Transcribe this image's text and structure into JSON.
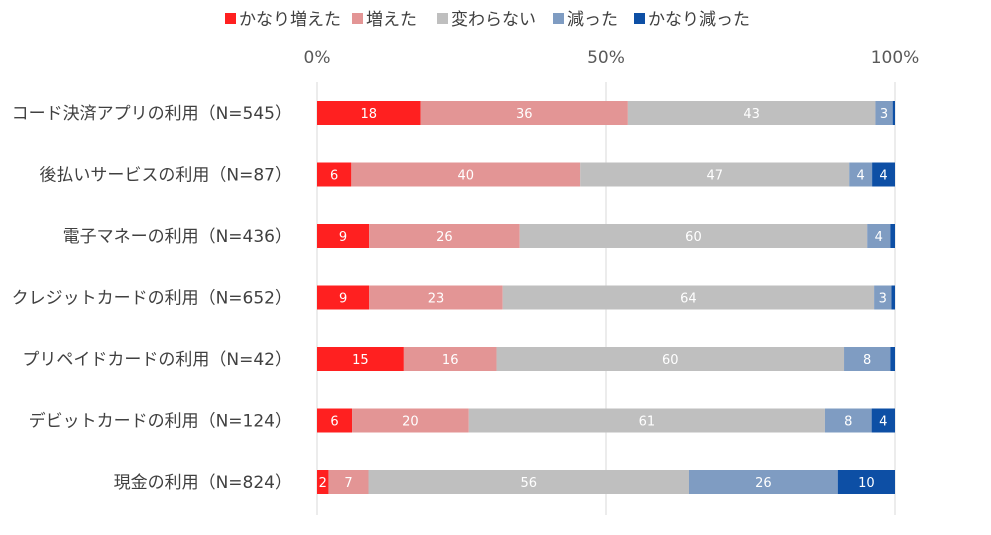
{
  "chart_data": {
    "type": "bar",
    "orientation": "horizontal",
    "stacked": "percent",
    "title": "",
    "xlabel": "",
    "ylabel": "",
    "xlim": [
      0,
      100
    ],
    "x_ticks": [
      0,
      50,
      100
    ],
    "x_tick_labels": [
      "0%",
      "50%",
      "100%"
    ],
    "legend_position": "top",
    "grid": true,
    "categories": [
      "コード決済アプリの利用（N=545）",
      "後払いサービスの利用（N=87）",
      "電子マネーの利用（N=436）",
      "クレジットカードの利用（N=652）",
      "プリペイドカードの利用（N=42）",
      "デビットカードの利用（N=124）",
      "現金の利用（N=824）"
    ],
    "series": [
      {
        "name": "かなり増えた",
        "color": "#ff2020",
        "values": [
          18,
          6,
          9,
          9,
          15,
          6,
          2
        ]
      },
      {
        "name": "増えた",
        "color": "#e39595",
        "values": [
          36,
          40,
          26,
          23,
          16,
          20,
          7
        ]
      },
      {
        "name": "変わらない",
        "color": "#bfbfbf",
        "values": [
          43,
          47,
          60,
          64,
          60,
          61,
          56
        ]
      },
      {
        "name": "減った",
        "color": "#7f9cc2",
        "values": [
          3,
          4,
          4,
          3,
          8,
          8,
          26
        ]
      },
      {
        "name": "かなり減った",
        "color": "#0d4fa5",
        "values": [
          0.4,
          4,
          0.8,
          0.6,
          0.8,
          4,
          10
        ]
      }
    ],
    "data_labels": [
      [
        "18",
        "36",
        "43",
        "3",
        ""
      ],
      [
        "6",
        "40",
        "47",
        "4",
        "4"
      ],
      [
        "9",
        "26",
        "60",
        "4",
        ""
      ],
      [
        "9",
        "23",
        "64",
        "3",
        ""
      ],
      [
        "15",
        "16",
        "60",
        "8",
        ""
      ],
      [
        "6",
        "20",
        "61",
        "8",
        "4"
      ],
      [
        "2",
        "7",
        "56",
        "26",
        "10"
      ]
    ]
  }
}
